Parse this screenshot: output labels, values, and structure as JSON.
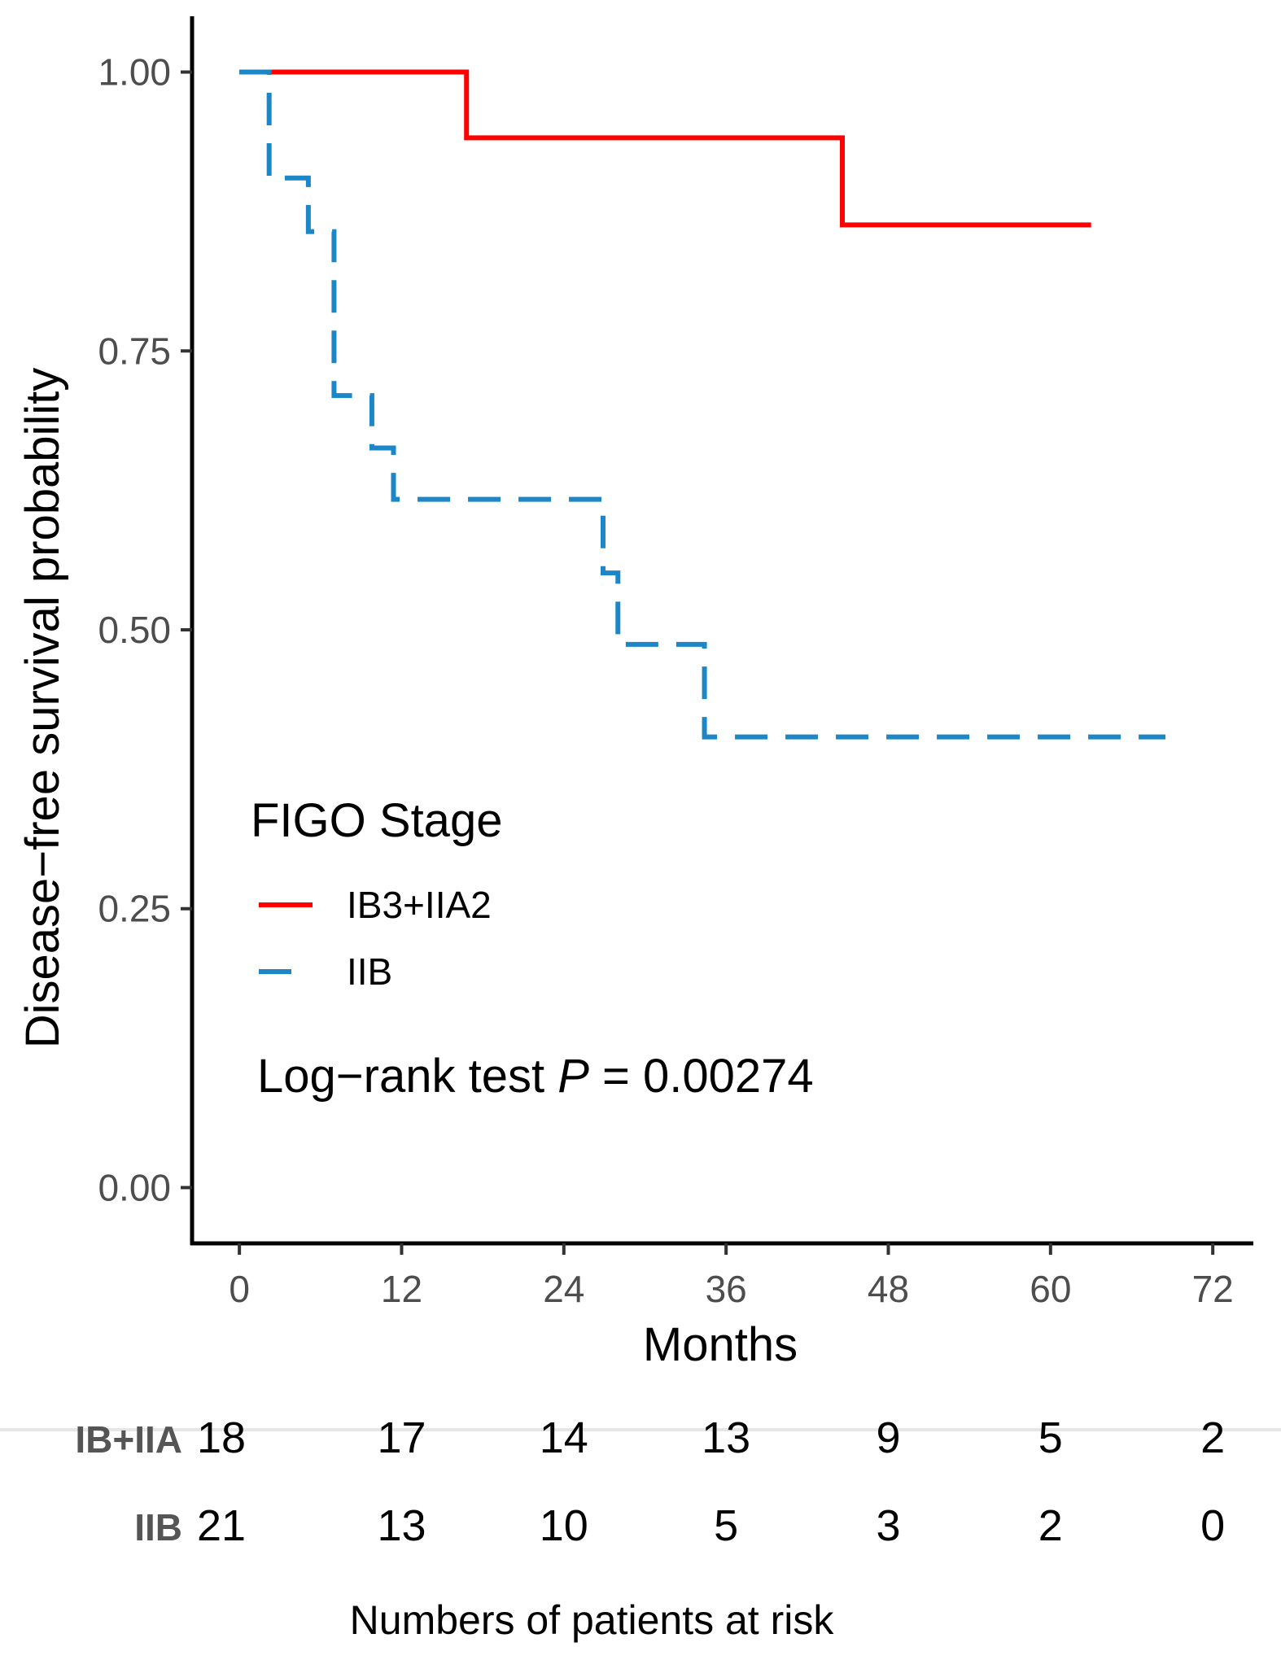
{
  "chart_data": {
    "type": "line",
    "subtype": "kaplan-meier step",
    "xlabel": "Months",
    "ylabel": "Disease−free survival probability",
    "xlim": [
      -3.5,
      75
    ],
    "ylim": [
      -0.05,
      1.05
    ],
    "x_ticks": [
      0,
      12,
      24,
      36,
      48,
      60,
      72
    ],
    "x_tick_labels": [
      "0",
      "12",
      "24",
      "36",
      "48",
      "60",
      "72"
    ],
    "y_ticks": [
      0,
      0.25,
      0.5,
      0.75,
      1
    ],
    "y_tick_labels": [
      "0.00",
      "0.25",
      "0.50",
      "0.75",
      "1.00"
    ],
    "grid": false,
    "legend": {
      "title": "FIGO Stage",
      "placement": "inside-bottom-left"
    },
    "annotation": {
      "prefix": "Log−rank test ",
      "italic": "P",
      "suffix": " = 0.00274"
    },
    "series": [
      {
        "name": "IB3+IIA2",
        "color": "#ff0000",
        "dash": "solid",
        "steps": [
          [
            0,
            1.0
          ],
          [
            16.8,
            0.941
          ],
          [
            44.6,
            0.863
          ]
        ],
        "x_end": 63
      },
      {
        "name": "IIB",
        "color": "#1c86c6",
        "dash": "dashed",
        "steps": [
          [
            0,
            1.0
          ],
          [
            2.2,
            0.905
          ],
          [
            5.1,
            0.857
          ],
          [
            7.0,
            0.71
          ],
          [
            9.8,
            0.663
          ],
          [
            11.4,
            0.617
          ],
          [
            26.9,
            0.551
          ],
          [
            28.0,
            0.487
          ],
          [
            34.4,
            0.404
          ]
        ],
        "x_end": 68.5
      }
    ],
    "risk_table": {
      "title": "Numbers of patients at risk",
      "times": [
        0,
        12,
        24,
        36,
        48,
        60,
        72
      ],
      "rows": [
        {
          "label": "IB+IIA",
          "values": [
            "18",
            "17",
            "14",
            "13",
            "9",
            "5",
            "2"
          ]
        },
        {
          "label": "IIB",
          "values": [
            "21",
            "13",
            "10",
            "5",
            "3",
            "2",
            "0"
          ]
        }
      ]
    }
  }
}
